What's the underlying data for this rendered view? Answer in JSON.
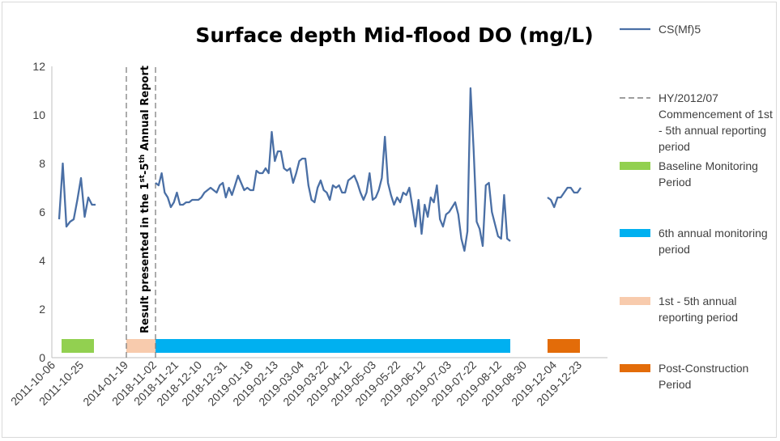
{
  "chart_data": {
    "type": "line",
    "title": "Surface depth Mid-flood DO (mg/L)",
    "xlabel": "",
    "ylabel": "",
    "ylim": [
      0,
      12
    ],
    "yticks": [
      "0",
      "2",
      "4",
      "6",
      "8",
      "10",
      "12"
    ],
    "xtick_labels": [
      "2011-10-06",
      "2011-10-25",
      "2014-01-19",
      "2018-11-02",
      "2018-11-21",
      "2018-12-10",
      "2018-12-31",
      "2019-01-18",
      "2019-02-13",
      "2019-03-04",
      "2019-03-22",
      "2019-04-12",
      "2019-05-03",
      "2019-05-22",
      "2019-06-12",
      "2019-07-03",
      "2019-07-22",
      "2019-08-12",
      "2019-08-30",
      "2019-12-04",
      "2019-12-23"
    ],
    "legend_position": "right",
    "grid": false,
    "annotation": {
      "prefix": "Result presented in the 1",
      "sup1": "st",
      "middle": "-5",
      "sup2": "th",
      "suffix": " Annual Report"
    },
    "series": [
      {
        "name": "CS(Mf)5",
        "color": "#4a6fa5",
        "segments": [
          [
            5.7,
            8.0,
            5.4,
            5.6,
            5.7,
            6.5,
            7.4,
            5.8,
            6.6,
            6.3,
            6.3
          ],
          [
            7.2,
            7.1,
            7.6,
            6.8,
            6.6,
            6.2,
            6.4,
            6.8,
            6.3,
            6.3,
            6.4,
            6.4,
            6.5,
            6.5,
            6.5,
            6.6,
            6.8,
            6.9,
            7.0,
            6.9,
            6.8,
            7.1,
            7.2,
            6.6,
            7.0,
            6.7,
            7.1,
            7.5,
            7.2,
            6.9,
            7.0,
            6.9,
            6.9,
            7.7,
            7.6,
            7.6,
            7.8,
            7.6,
            9.3,
            8.1,
            8.5,
            8.5,
            7.8,
            7.7,
            7.8,
            7.2,
            7.6,
            8.1,
            8.2,
            8.2,
            7.1,
            6.5,
            6.4,
            7.0,
            7.3,
            6.9,
            6.8,
            6.5,
            7.1,
            7.0,
            7.1,
            6.8,
            6.8,
            7.3,
            7.4,
            7.5,
            7.2,
            6.8,
            6.5,
            6.8,
            7.6,
            6.5,
            6.6,
            6.9,
            7.4,
            9.1,
            7.2,
            6.7,
            6.3,
            6.6,
            6.4,
            6.8,
            6.7,
            7.0,
            6.2,
            5.4,
            6.5,
            5.1,
            6.3,
            5.8,
            6.6,
            6.4,
            7.1,
            5.7,
            5.4,
            5.9,
            6.0,
            6.2,
            6.4,
            5.9,
            4.9,
            4.4,
            5.2,
            11.1,
            8.6,
            5.6,
            5.3,
            4.6,
            7.1,
            7.2,
            6.0,
            5.5,
            5.0,
            4.9,
            6.7,
            4.9,
            4.8
          ],
          [
            6.6,
            6.5,
            6.2,
            6.6,
            6.6,
            6.8,
            7.0,
            7.0,
            6.8,
            6.8,
            7.0
          ]
        ]
      }
    ],
    "reference_lines": [
      {
        "name": "HY/2012/07 Commencement of 1st - 5th annual reporting period",
        "color": "#7f7f7f",
        "style": "dashed"
      }
    ],
    "periods": [
      {
        "name": "Baseline Monitoring Period",
        "color": "#92d050"
      },
      {
        "name": "1st - 5th annual reporting period",
        "color": "#f8cbad"
      },
      {
        "name": "6th annual monitoring period",
        "color": "#00b0f0"
      },
      {
        "name": "Post-Construction Period",
        "color": "#e36c09"
      }
    ]
  },
  "legend": [
    {
      "lines": [
        "CS(Mf)5"
      ]
    },
    {
      "lines": [
        "HY/2012/07",
        "Commencement of 1st",
        "- 5th annual reporting",
        "period"
      ]
    },
    {
      "lines": [
        "Baseline Monitoring",
        "Period"
      ]
    },
    {
      "lines": [
        "6th annual monitoring",
        "period"
      ]
    },
    {
      "lines": [
        "1st - 5th annual",
        "reporting period"
      ]
    },
    {
      "lines": [
        "Post-Construction",
        "Period"
      ]
    }
  ]
}
